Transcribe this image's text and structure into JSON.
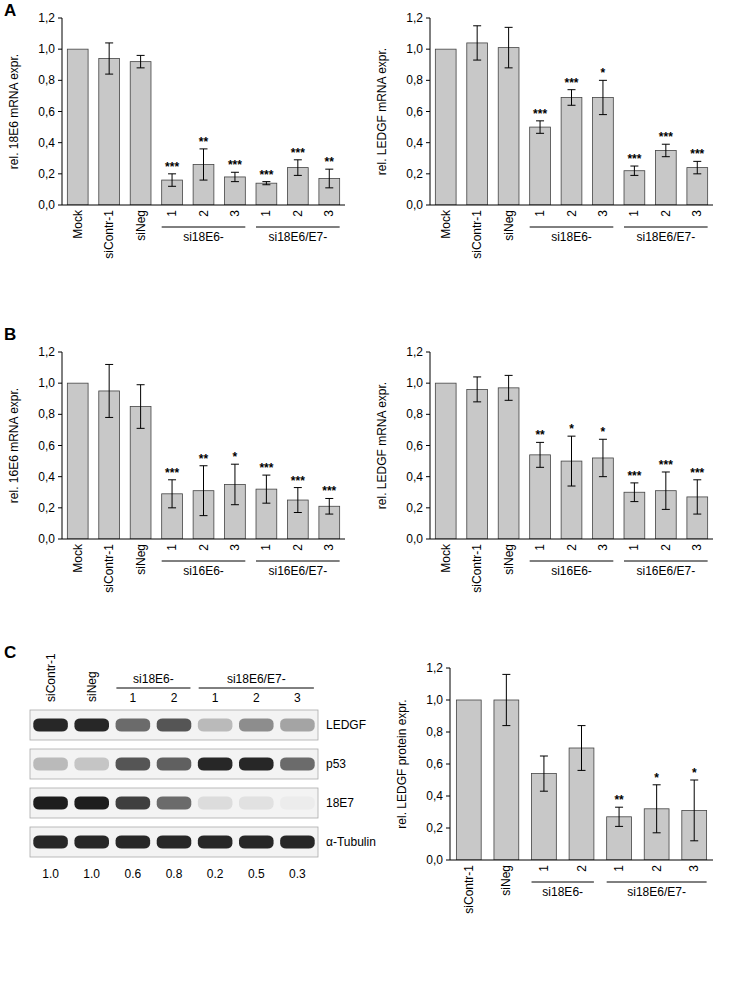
{
  "chart_data": [
    {
      "type": "bar",
      "annotations": [
        "A"
      ],
      "y_label": "rel. 18E6 mRNA expr.",
      "color": "#c8c8c8",
      "categories": [
        "Mock",
        "siContr-1",
        "siNeg",
        "1",
        "2",
        "3",
        "1",
        "2",
        "3"
      ],
      "category_groups": [
        {
          "label": "si18E6-",
          "categories": [
            3,
            4,
            5
          ]
        },
        {
          "label": "si18E6/E7-",
          "categories": [
            6,
            7,
            8
          ]
        }
      ],
      "values": [
        1.0,
        0.94,
        0.92,
        0.16,
        0.26,
        0.18,
        0.14,
        0.24,
        0.17
      ],
      "errors": [
        null,
        0.1,
        0.04,
        0.04,
        0.1,
        0.03,
        0.01,
        0.05,
        0.06
      ],
      "significance": [
        null,
        null,
        null,
        "***",
        "**",
        "***",
        "***",
        "***",
        "**"
      ],
      "ylim": [
        0,
        1.2
      ],
      "yticks": [
        {
          "value": 0,
          "label": "0,0"
        },
        {
          "value": 0.2,
          "label": "0,2"
        },
        {
          "value": 0.4,
          "label": "0,4"
        },
        {
          "value": 0.6,
          "label": "0,6"
        },
        {
          "value": 0.8,
          "label": "0,8"
        },
        {
          "value": 1.0,
          "label": "1,0"
        },
        {
          "value": 1.2,
          "label": "1,2"
        }
      ],
      "grid": false
    },
    {
      "type": "bar",
      "y_label": "rel. LEDGF mRNA expr.",
      "color": "#c8c8c8",
      "categories": [
        "Mock",
        "siContr-1",
        "siNeg",
        "1",
        "2",
        "3",
        "1",
        "2",
        "3"
      ],
      "category_groups": [
        {
          "label": "si18E6-",
          "categories": [
            3,
            4,
            5
          ]
        },
        {
          "label": "si18E6/E7-",
          "categories": [
            6,
            7,
            8
          ]
        }
      ],
      "values": [
        1.0,
        1.04,
        1.01,
        0.5,
        0.69,
        0.69,
        0.22,
        0.35,
        0.24
      ],
      "errors": [
        null,
        0.11,
        0.13,
        0.04,
        0.05,
        0.11,
        0.03,
        0.04,
        0.04
      ],
      "significance": [
        null,
        null,
        null,
        "***",
        "***",
        "*",
        "***",
        "***",
        "***"
      ],
      "ylim": [
        0,
        1.2
      ],
      "yticks": [
        {
          "value": 0,
          "label": "0,0"
        },
        {
          "value": 0.2,
          "label": "0,2"
        },
        {
          "value": 0.4,
          "label": "0,4"
        },
        {
          "value": 0.6,
          "label": "0,6"
        },
        {
          "value": 0.8,
          "label": "0,8"
        },
        {
          "value": 1.0,
          "label": "1,0"
        },
        {
          "value": 1.2,
          "label": "1,2"
        }
      ],
      "grid": false
    },
    {
      "type": "bar",
      "annotations": [
        "B"
      ],
      "y_label": "rel. 16E6 mRNA expr.",
      "color": "#c8c8c8",
      "categories": [
        "Mock",
        "siContr-1",
        "siNeg",
        "1",
        "2",
        "3",
        "1",
        "2",
        "3"
      ],
      "category_groups": [
        {
          "label": "si16E6-",
          "categories": [
            3,
            4,
            5
          ]
        },
        {
          "label": "si16E6/E7-",
          "categories": [
            6,
            7,
            8
          ]
        }
      ],
      "values": [
        1.0,
        0.95,
        0.85,
        0.29,
        0.31,
        0.35,
        0.32,
        0.25,
        0.21
      ],
      "errors": [
        null,
        0.17,
        0.14,
        0.09,
        0.16,
        0.13,
        0.09,
        0.08,
        0.05
      ],
      "significance": [
        null,
        null,
        null,
        "***",
        "**",
        "*",
        "***",
        "***",
        "***"
      ],
      "ylim": [
        0,
        1.2
      ],
      "yticks": [
        {
          "value": 0,
          "label": "0,0"
        },
        {
          "value": 0.2,
          "label": "0,2"
        },
        {
          "value": 0.4,
          "label": "0,4"
        },
        {
          "value": 0.6,
          "label": "0,6"
        },
        {
          "value": 0.8,
          "label": "0,8"
        },
        {
          "value": 1.0,
          "label": "1,0"
        },
        {
          "value": 1.2,
          "label": "1,2"
        }
      ],
      "grid": false
    },
    {
      "type": "bar",
      "y_label": "rel. LEDGF mRNA expr.",
      "color": "#c8c8c8",
      "categories": [
        "Mock",
        "siContr-1",
        "siNeg",
        "1",
        "2",
        "3",
        "1",
        "2",
        "3"
      ],
      "category_groups": [
        {
          "label": "si16E6-",
          "categories": [
            3,
            4,
            5
          ]
        },
        {
          "label": "si16E6/E7-",
          "categories": [
            6,
            7,
            8
          ]
        }
      ],
      "values": [
        1.0,
        0.96,
        0.97,
        0.54,
        0.5,
        0.52,
        0.3,
        0.31,
        0.27
      ],
      "errors": [
        null,
        0.08,
        0.08,
        0.08,
        0.16,
        0.12,
        0.06,
        0.12,
        0.11
      ],
      "significance": [
        null,
        null,
        null,
        "**",
        "*",
        "*",
        "***",
        "***",
        "***"
      ],
      "ylim": [
        0,
        1.2
      ],
      "yticks": [
        {
          "value": 0,
          "label": "0,0"
        },
        {
          "value": 0.2,
          "label": "0,2"
        },
        {
          "value": 0.4,
          "label": "0,4"
        },
        {
          "value": 0.6,
          "label": "0,6"
        },
        {
          "value": 0.8,
          "label": "0,8"
        },
        {
          "value": 1.0,
          "label": "1,0"
        },
        {
          "value": 1.2,
          "label": "1,2"
        }
      ],
      "grid": false
    },
    {
      "type": "bar",
      "y_label": "rel. LEDGF protein expr.",
      "color": "#c8c8c8",
      "categories": [
        "siContr-1",
        "siNeg",
        "1",
        "2",
        "1",
        "2",
        "3"
      ],
      "category_groups": [
        {
          "label": "si18E6-",
          "categories": [
            2,
            3
          ]
        },
        {
          "label": "si18E6/E7-",
          "categories": [
            4,
            5,
            6
          ]
        }
      ],
      "values": [
        1.0,
        1.0,
        0.54,
        0.7,
        0.27,
        0.32,
        0.31
      ],
      "errors": [
        null,
        0.16,
        0.11,
        0.14,
        0.06,
        0.15,
        0.19
      ],
      "significance": [
        null,
        null,
        null,
        null,
        "**",
        "*",
        "*"
      ],
      "ylim": [
        0,
        1.2
      ],
      "yticks": [
        {
          "value": 0,
          "label": "0,0"
        },
        {
          "value": 0.2,
          "label": "0,2"
        },
        {
          "value": 0.4,
          "label": "0,4"
        },
        {
          "value": 0.6,
          "label": "0,6"
        },
        {
          "value": 0.8,
          "label": "0,8"
        },
        {
          "value": 1.0,
          "label": "1,0"
        },
        {
          "value": 1.2,
          "label": "1,2"
        }
      ],
      "grid": false
    }
  ],
  "blot": {
    "annotations": [
      "C"
    ],
    "lanes": [
      "siContr-1",
      "siNeg",
      "1",
      "2",
      "1",
      "2",
      "3"
    ],
    "groups": [
      {
        "label": "si18E6-",
        "lanes": [
          2,
          3
        ]
      },
      {
        "label": "si18E6/E7-",
        "lanes": [
          4,
          5,
          6
        ]
      }
    ],
    "rows": [
      {
        "label": "LEDGF",
        "band_intensity": [
          0.9,
          0.9,
          0.6,
          0.7,
          0.25,
          0.45,
          0.35
        ]
      },
      {
        "label": "p53",
        "band_intensity": [
          0.25,
          0.2,
          0.7,
          0.65,
          0.9,
          0.9,
          0.6
        ]
      },
      {
        "label": "18E7",
        "band_intensity": [
          0.95,
          0.95,
          0.8,
          0.6,
          0.1,
          0.08,
          0.03
        ]
      },
      {
        "label": "α-Tubulin",
        "band_intensity": [
          0.9,
          0.9,
          0.9,
          0.9,
          0.9,
          0.9,
          0.9
        ]
      }
    ],
    "quantification": [
      "1.0",
      "1.0",
      "0.6",
      "0.8",
      "0.2",
      "0.5",
      "0.3"
    ]
  }
}
